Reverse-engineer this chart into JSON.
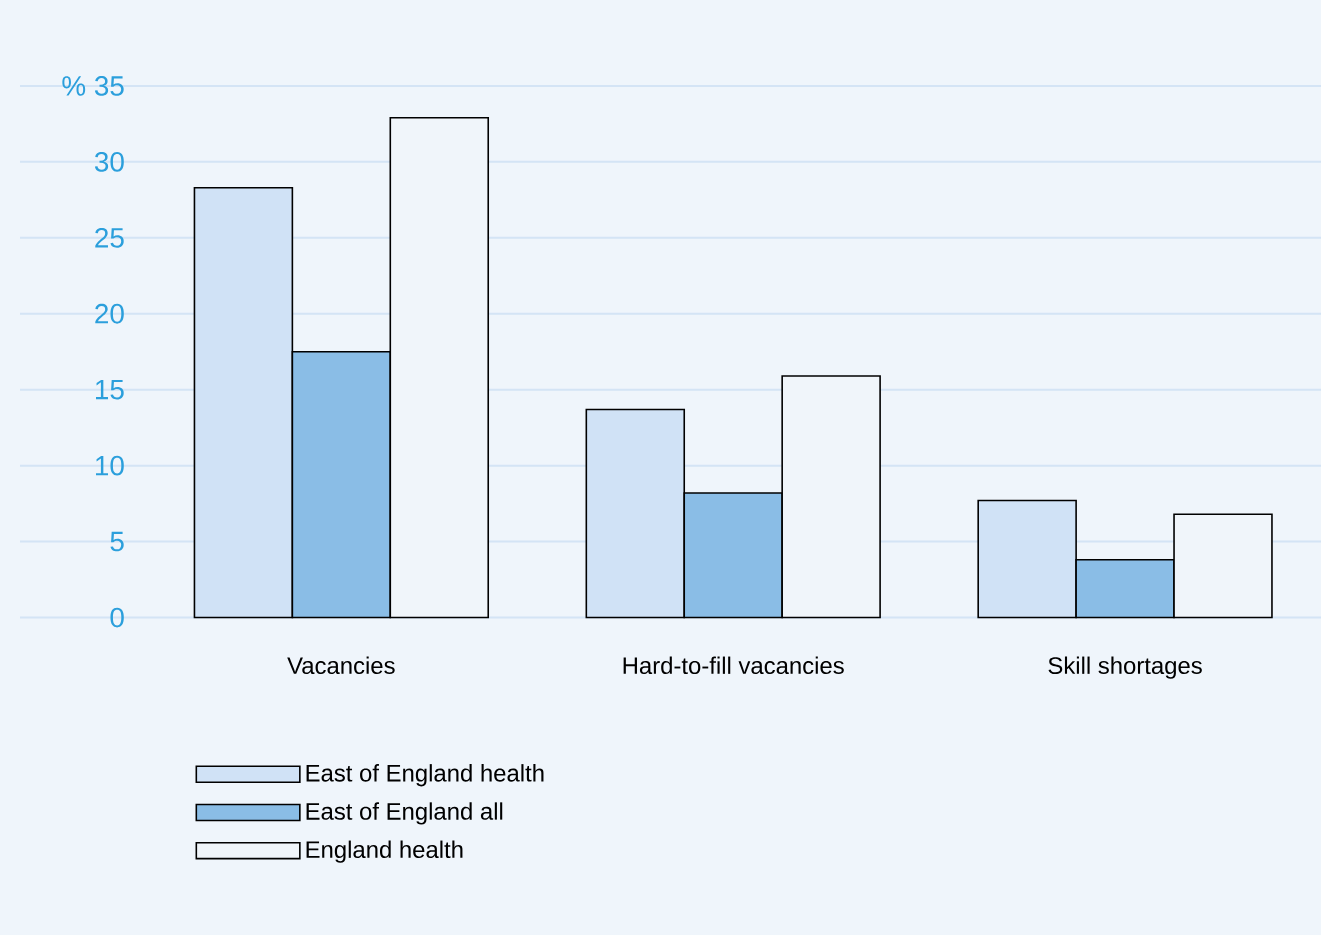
{
  "chart_data": {
    "type": "bar",
    "categories": [
      "Vacancies",
      "Hard-to-fill vacancies",
      "Skill shortages"
    ],
    "series": [
      {
        "name": "East of England health",
        "color": "#d0e2f6",
        "values": [
          28.3,
          13.7,
          7.7
        ]
      },
      {
        "name": "East of England all",
        "color": "#8abde6",
        "values": [
          17.5,
          8.2,
          3.8
        ]
      },
      {
        "name": "England health",
        "color": "#f0f5fa",
        "values": [
          32.9,
          15.9,
          6.8
        ]
      }
    ],
    "ylim": [
      0,
      35
    ],
    "yticks": [
      0,
      5,
      10,
      15,
      20,
      25,
      30,
      {
        "value": 35,
        "label": "% 35"
      }
    ],
    "grid": "y",
    "legend": "bottom"
  }
}
